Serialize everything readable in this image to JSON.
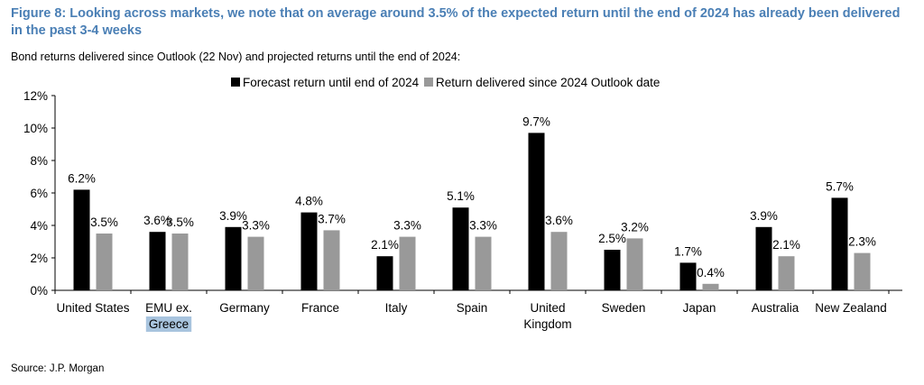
{
  "figure": {
    "title": "Figure 8: Looking across markets, we note that on average around 3.5% of the expected return until the end of 2024 has already been delivered in the past 3-4 weeks",
    "subtitle": "Bond returns delivered since Outlook (22 Nov) and projected returns until the end of 2024:",
    "source": "Source: J.P. Morgan"
  },
  "chart_data": {
    "type": "bar",
    "categories": [
      [
        "United States"
      ],
      [
        "EMU ex.",
        "Greece"
      ],
      [
        "Germany"
      ],
      [
        "France"
      ],
      [
        "Italy"
      ],
      [
        "Spain"
      ],
      [
        "United",
        "Kingdom"
      ],
      [
        "Sweden"
      ],
      [
        "Japan"
      ],
      [
        "Australia"
      ],
      [
        "New Zealand"
      ]
    ],
    "series": [
      {
        "name": "Forecast return until end of 2024",
        "color": "#000000",
        "values": [
          6.2,
          3.6,
          3.9,
          4.8,
          2.1,
          5.1,
          9.7,
          2.5,
          1.7,
          3.9,
          5.7
        ],
        "labels": [
          "6.2%",
          "3.6%",
          "3.9%",
          "4.8%",
          "2.1%",
          "5.1%",
          "9.7%",
          "2.5%",
          "1.7%",
          "3.9%",
          "5.7%"
        ]
      },
      {
        "name": "Return delivered since 2024 Outlook date",
        "color": "#999999",
        "values": [
          3.5,
          3.5,
          3.3,
          3.7,
          3.3,
          3.3,
          3.6,
          3.2,
          0.4,
          2.1,
          2.3
        ],
        "labels": [
          "3.5%",
          "3.5%",
          "3.3%",
          "3.7%",
          "3.3%",
          "3.3%",
          "3.6%",
          "3.2%",
          "0.4%",
          "2.1%",
          "2.3%"
        ]
      }
    ],
    "ylim": [
      0,
      12
    ],
    "yticks": [
      0,
      2,
      4,
      6,
      8,
      10,
      12
    ],
    "ytick_labels": [
      "0%",
      "2%",
      "4%",
      "6%",
      "8%",
      "10%",
      "12%"
    ],
    "grid": false,
    "legend_position": "top-center",
    "highlighted_label": "Greece",
    "highlight_color": "#a8c4de"
  }
}
